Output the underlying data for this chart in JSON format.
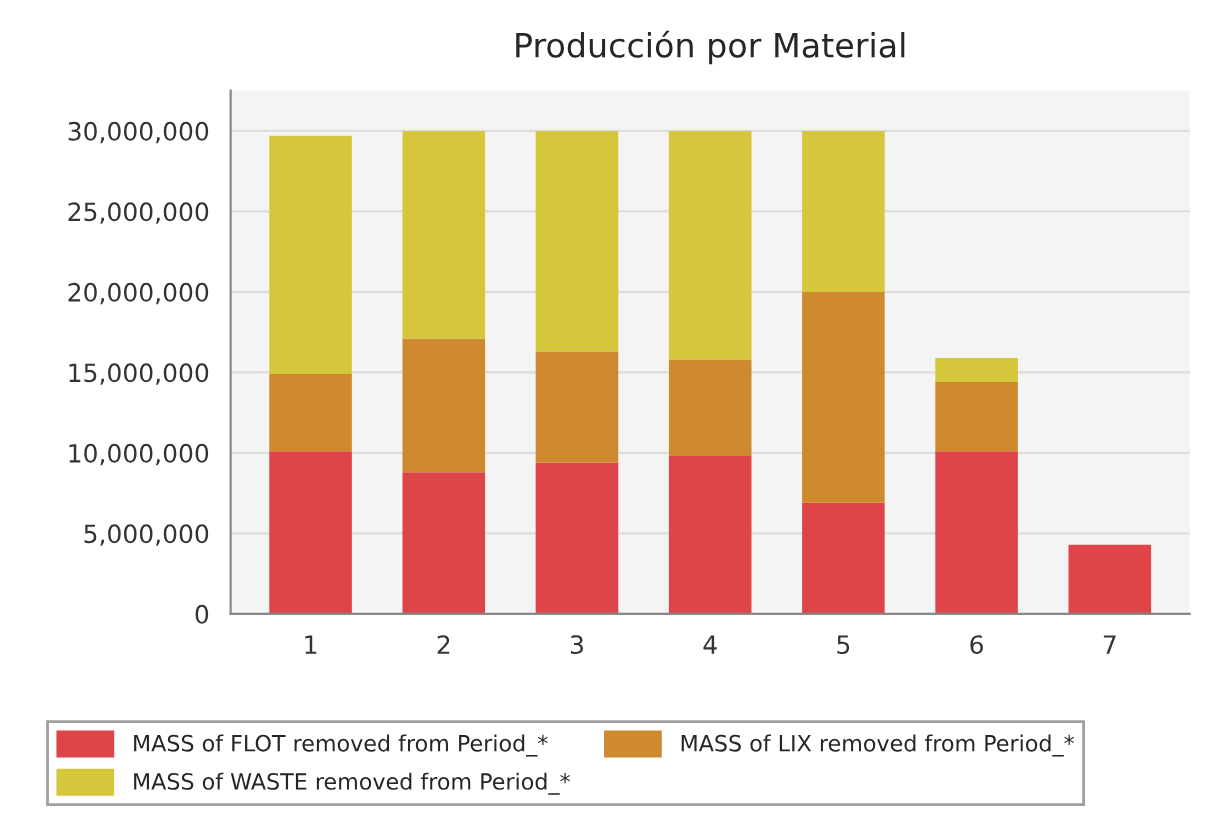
{
  "chart_data": {
    "type": "bar",
    "title": "Producción por Material",
    "stacked": true,
    "categories": [
      "1",
      "2",
      "3",
      "4",
      "5",
      "6",
      "7"
    ],
    "series": [
      {
        "name": "MASS of FLOT removed from Period_*",
        "color": "#de4448",
        "values": [
          10100000,
          8800000,
          9400000,
          9800000,
          6900000,
          10100000,
          4300000
        ]
      },
      {
        "name": "MASS of LIX removed from Period_*",
        "color": "#cf8a30",
        "values": [
          4800000,
          8300000,
          6900000,
          6000000,
          13100000,
          4300000,
          0
        ]
      },
      {
        "name": "MASS of WASTE removed from Period_*",
        "color": "#d6c63c",
        "values": [
          14800000,
          12900000,
          13700000,
          14200000,
          10000000,
          1500000,
          0
        ]
      }
    ],
    "ylim": [
      0,
      32500000
    ],
    "yticks": [
      {
        "value": 0,
        "label": "0"
      },
      {
        "value": 5000000,
        "label": "5,000,000"
      },
      {
        "value": 10000000,
        "label": "10,000,000"
      },
      {
        "value": 15000000,
        "label": "15,000,000"
      },
      {
        "value": 20000000,
        "label": "20,000,000"
      },
      {
        "value": 25000000,
        "label": "25,000,000"
      },
      {
        "value": 30000000,
        "label": "30,000,000"
      }
    ],
    "grid": "y",
    "legend": "bottom"
  }
}
